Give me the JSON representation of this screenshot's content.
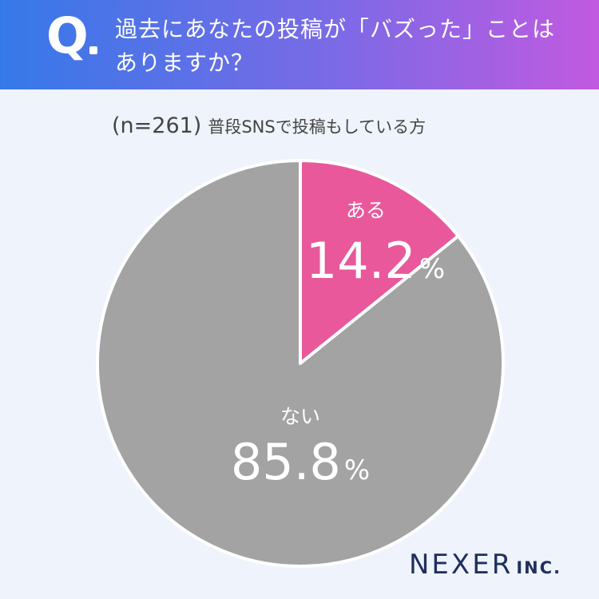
{
  "header": {
    "q_label": "Q",
    "question_line1": "過去にあなたの投稿が「バズった」ことは",
    "question_line2": "ありますか？"
  },
  "sample": {
    "n": "(n=261)",
    "description": "普段SNSで投稿もしている方"
  },
  "chart_data": {
    "type": "pie",
    "start_angle": "12 o'clock",
    "direction": "clockwise",
    "slices": [
      {
        "label": "ある",
        "value": 14.2,
        "value_text": "14.2",
        "unit": "%",
        "color": "#e8589a"
      },
      {
        "label": "ない",
        "value": 85.8,
        "value_text": "85.8",
        "unit": "%",
        "color": "#a3a3a3"
      }
    ]
  },
  "brand": {
    "name": "NEXER",
    "suffix": "INC.",
    "color": "#1f2f5e"
  }
}
